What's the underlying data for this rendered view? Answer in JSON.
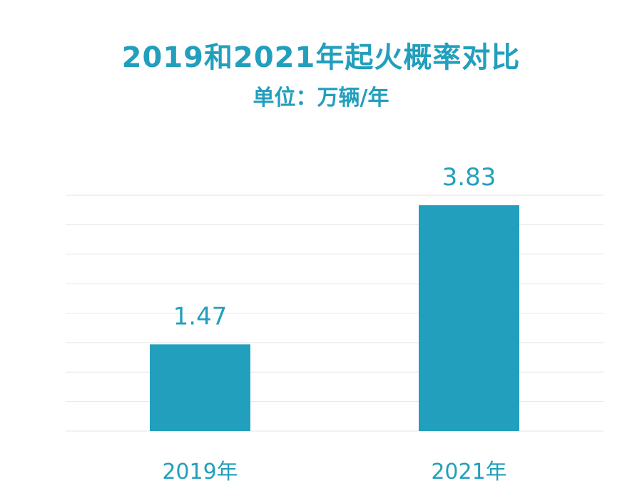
{
  "chart_data": {
    "type": "bar",
    "title": "2019和2021年起火概率对比",
    "subtitle": "单位：万辆/年",
    "categories": [
      "2019年",
      "2021年"
    ],
    "values": [
      1.47,
      3.83
    ],
    "data_labels": [
      "1.47",
      "3.83"
    ],
    "ylim": [
      0,
      4.0
    ],
    "grid": true,
    "legend": "none",
    "bar_color": "#229fbd",
    "text_color": "#229fbd",
    "grid_color": "#e6e6e6"
  }
}
